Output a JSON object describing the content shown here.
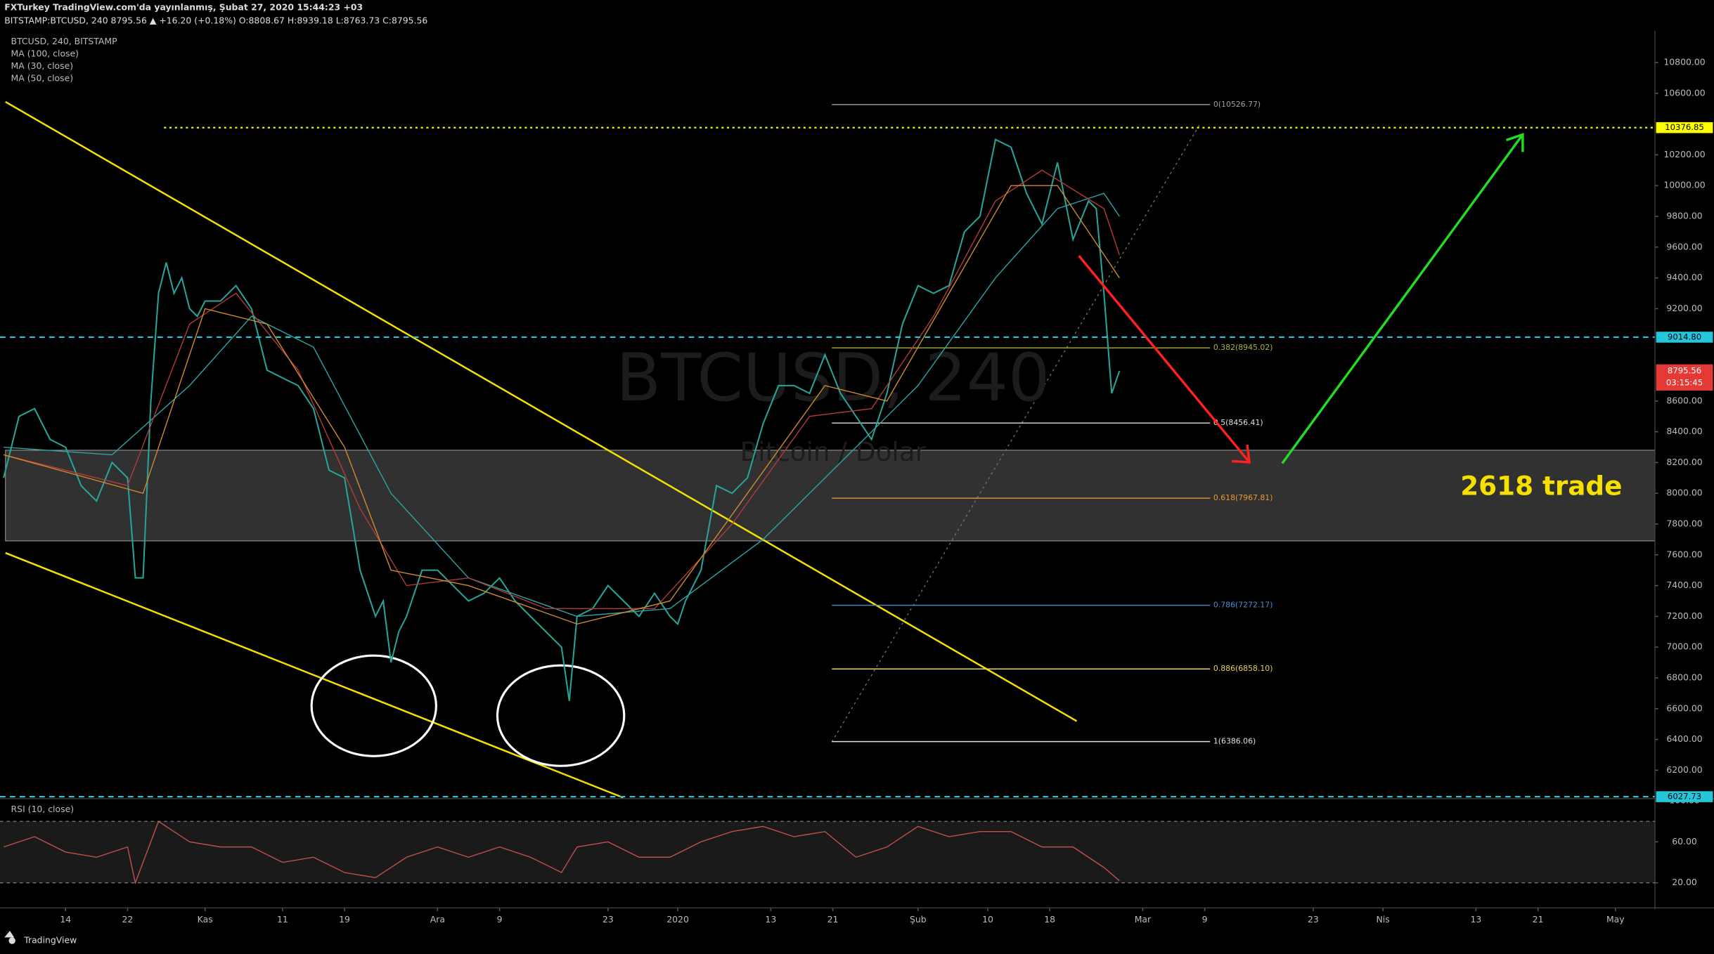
{
  "header": {
    "publisher": "FXTurkey TradingView.com'da yayınlanmış, Şubat 27, 2020 15:44:23 +03",
    "quote": "BITSTAMP:BTCUSD, 240  8795.56 ▲ +16.20 (+0.18%) O:8808.67 H:8939.18 L:8763.73 C:8795.56",
    "symbol_legend": "BTCUSD, 240, BITSTAMP",
    "watermark": "BTCUSD, 240",
    "watermark_sub": "Bitcoin / Dolar",
    "annotation": "2618 trade",
    "countdown": "03:15:45",
    "brand": "TradingView"
  },
  "chart_data": [
    {
      "type": "line",
      "xlim": [
        5.54,
        219.1
      ],
      "ylim": [
        6022,
        10992
      ],
      "grid": false,
      "xticks": [
        {
          "value": 14,
          "label": "14"
        },
        {
          "value": 22,
          "label": "22"
        },
        {
          "value": 32,
          "label": "Kas"
        },
        {
          "value": 42,
          "label": "11"
        },
        {
          "value": 50,
          "label": "19"
        },
        {
          "value": 62,
          "label": "Ara"
        },
        {
          "value": 70,
          "label": "9"
        },
        {
          "value": 84,
          "label": "23"
        },
        {
          "value": 93,
          "label": "2020"
        },
        {
          "value": 105,
          "label": "13"
        },
        {
          "value": 113,
          "label": "21"
        },
        {
          "value": 124,
          "label": "Şub"
        },
        {
          "value": 133,
          "label": "10"
        },
        {
          "value": 141,
          "label": "18"
        },
        {
          "value": 153,
          "label": "Mar"
        },
        {
          "value": 161,
          "label": "9"
        },
        {
          "value": 175,
          "label": "23"
        },
        {
          "value": 184,
          "label": "Nis"
        },
        {
          "value": 196,
          "label": "13"
        },
        {
          "value": 204,
          "label": "21"
        },
        {
          "value": 214,
          "label": "May"
        }
      ],
      "yticks": [
        {
          "value": 10800,
          "label": "10800.00"
        },
        {
          "value": 10600,
          "label": "10600.00"
        },
        {
          "value": 10200,
          "label": "10200.00"
        },
        {
          "value": 10000,
          "label": "10000.00"
        },
        {
          "value": 9800,
          "label": "9800.00"
        },
        {
          "value": 9600,
          "label": "9600.00"
        },
        {
          "value": 9400,
          "label": "9400.00"
        },
        {
          "value": 9200,
          "label": "9200.00"
        },
        {
          "value": 8600,
          "label": "8600.00"
        },
        {
          "value": 8400,
          "label": "8400.00"
        },
        {
          "value": 8200,
          "label": "8200.00"
        },
        {
          "value": 8000,
          "label": "8000.00"
        },
        {
          "value": 7800,
          "label": "7800.00"
        },
        {
          "value": 7600,
          "label": "7600.00"
        },
        {
          "value": 7400,
          "label": "7400.00"
        },
        {
          "value": 7200,
          "label": "7200.00"
        },
        {
          "value": 7000,
          "label": "7000.00"
        },
        {
          "value": 6800,
          "label": "6800.00"
        },
        {
          "value": 6600,
          "label": "6600.00"
        },
        {
          "value": 6400,
          "label": "6400.00"
        },
        {
          "value": 6200,
          "label": "6200.00"
        }
      ],
      "series": [
        {
          "name": "BTCUSD",
          "color": "#26a69a",
          "x": [
            6,
            8,
            10,
            12,
            14,
            16,
            18,
            20,
            22,
            23,
            24,
            25,
            26,
            27,
            28,
            29,
            30,
            31,
            32,
            34,
            36,
            38,
            40,
            42,
            44,
            46,
            48,
            50,
            52,
            54,
            55,
            56,
            57,
            58,
            60,
            62,
            64,
            66,
            68,
            70,
            72,
            74,
            76,
            78,
            79,
            80,
            82,
            84,
            86,
            88,
            90,
            92,
            93,
            94,
            96,
            98,
            100,
            102,
            104,
            106,
            108,
            110,
            112,
            114,
            116,
            118,
            120,
            122,
            124,
            126,
            128,
            130,
            132,
            134,
            136,
            138,
            140,
            142,
            144,
            146,
            147,
            148,
            149,
            150
          ],
          "values": [
            8100,
            8500,
            8550,
            8350,
            8300,
            8050,
            7950,
            8200,
            8100,
            7450,
            7450,
            8600,
            9300,
            9500,
            9300,
            9400,
            9200,
            9150,
            9250,
            9250,
            9350,
            9200,
            8800,
            8750,
            8700,
            8550,
            8150,
            8100,
            7500,
            7200,
            7300,
            6900,
            7100,
            7200,
            7500,
            7500,
            7400,
            7300,
            7350,
            7450,
            7300,
            7200,
            7100,
            7000,
            6650,
            7200,
            7250,
            7400,
            7300,
            7200,
            7350,
            7200,
            7150,
            7300,
            7500,
            8050,
            8000,
            8100,
            8450,
            8700,
            8700,
            8650,
            8900,
            8650,
            8500,
            8350,
            8650,
            9100,
            9350,
            9300,
            9350,
            9700,
            9800,
            10300,
            10250,
            9950,
            9750,
            10150,
            9650,
            9900,
            9850,
            9300,
            8650,
            8795.56
          ]
        },
        {
          "name": "MA (100, close)",
          "color": "#2aa5a5",
          "x": [
            6,
            20,
            30,
            38,
            46,
            56,
            66,
            80,
            92,
            104,
            116,
            124,
            134,
            142,
            148,
            150
          ],
          "values": [
            8300,
            8250,
            8700,
            9150,
            8950,
            8000,
            7450,
            7200,
            7250,
            7700,
            8300,
            8700,
            9400,
            9850,
            9950,
            9800
          ]
        },
        {
          "name": "MA (30, close)",
          "color": "#b33a3a",
          "x": [
            6,
            22,
            30,
            36,
            44,
            52,
            58,
            66,
            76,
            90,
            100,
            110,
            118,
            126,
            134,
            140,
            148,
            150
          ],
          "values": [
            8250,
            8050,
            9100,
            9300,
            8800,
            7900,
            7400,
            7450,
            7250,
            7250,
            7800,
            8500,
            8550,
            9150,
            9900,
            10100,
            9850,
            9550
          ]
        },
        {
          "name": "MA (50, close)",
          "color": "#d08a2e",
          "x": [
            6,
            24,
            32,
            40,
            50,
            56,
            66,
            80,
            92,
            102,
            112,
            120,
            128,
            136,
            142,
            150
          ],
          "values": [
            8250,
            8000,
            9200,
            9100,
            8300,
            7500,
            7400,
            7150,
            7300,
            8000,
            8700,
            8600,
            9300,
            10000,
            10000,
            9400
          ]
        }
      ],
      "price_levels": [
        {
          "value": 10376.85,
          "label": "10376.85",
          "color": "#ffff00"
        },
        {
          "value": 9014.8,
          "label": "9014.80",
          "color": "#26c6da"
        },
        {
          "value": 6027.73,
          "label": "6027.73",
          "color": "#26c6da"
        }
      ],
      "fib_levels": [
        {
          "value": 10526.77,
          "label": "0(10526.77)",
          "color": "#9e9e9e"
        },
        {
          "value": 8945.02,
          "label": "0.382(8945.02)",
          "color": "#a5b53a"
        },
        {
          "value": 8456.41,
          "label": "0.5(8456.41)",
          "color": "#e0e0e0"
        },
        {
          "value": 7967.81,
          "label": "0.618(7967.81)",
          "color": "#e69a3a"
        },
        {
          "value": 7272.17,
          "label": "0.786(7272.17)",
          "color": "#4a8fd0"
        },
        {
          "value": 6858.1,
          "label": "0.886(6858.10)",
          "color": "#e8d44a"
        },
        {
          "value": 6386.06,
          "label": "1(6386.06)",
          "color": "#e0e0e0"
        }
      ]
    },
    {
      "type": "line",
      "title": "RSI (10, close)",
      "ylim": [
        -1.3,
        100
      ],
      "yticks": [
        {
          "value": 100,
          "label": "100.00"
        },
        {
          "value": 60,
          "label": "60.00"
        },
        {
          "value": 20,
          "label": "20.00"
        }
      ],
      "bands": [
        80,
        20
      ],
      "series": [
        {
          "name": "RSI",
          "color": "#c0504d",
          "x": [
            6,
            10,
            14,
            18,
            22,
            23,
            26,
            30,
            34,
            38,
            42,
            46,
            50,
            54,
            58,
            62,
            66,
            70,
            74,
            78,
            80,
            84,
            88,
            92,
            96,
            100,
            104,
            108,
            112,
            116,
            120,
            124,
            128,
            132,
            136,
            140,
            144,
            148,
            150
          ],
          "values": [
            55,
            65,
            50,
            45,
            55,
            20,
            80,
            60,
            55,
            55,
            40,
            45,
            30,
            25,
            45,
            55,
            45,
            55,
            45,
            30,
            55,
            60,
            45,
            45,
            60,
            70,
            75,
            65,
            70,
            45,
            55,
            75,
            65,
            70,
            70,
            55,
            55,
            35,
            22
          ]
        }
      ]
    }
  ]
}
